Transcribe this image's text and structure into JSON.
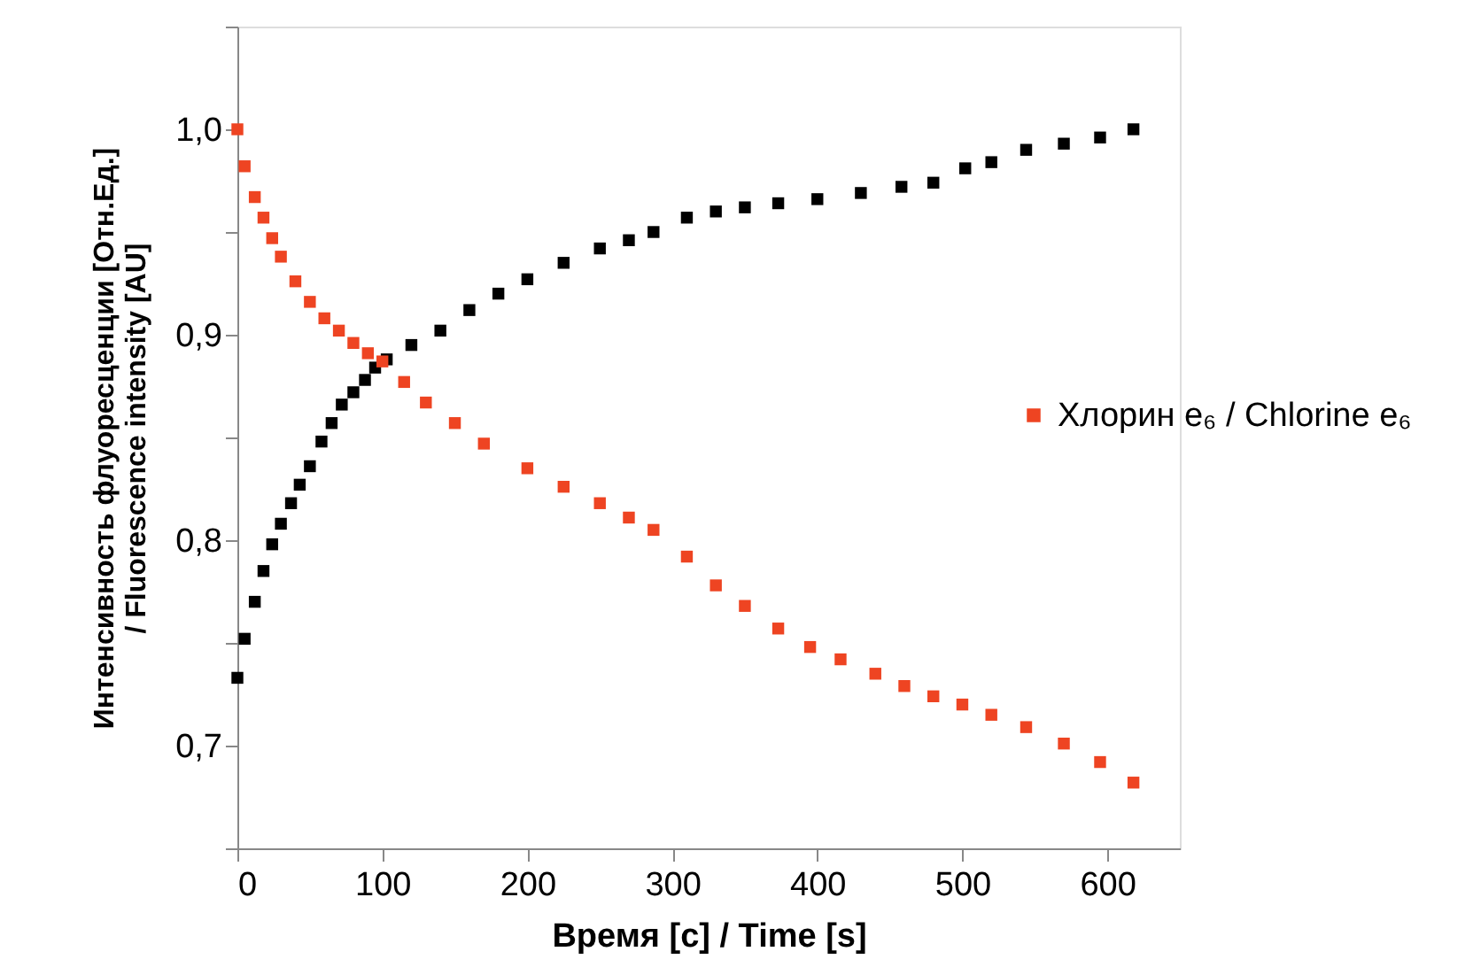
{
  "chart_data": {
    "type": "scatter",
    "xlabel": "Время [с] / Time [s]",
    "ylabel": "Интенсивность флуоресценции [Отн.Ед.] / Fluorescence intensity [AU]",
    "xlim": [
      0,
      650
    ],
    "xticks": [
      0,
      100,
      200,
      300,
      400,
      500,
      600
    ],
    "ylim": [
      0.65,
      1.05
    ],
    "yticks": [
      {
        "value": 0.65,
        "label": null
      },
      {
        "value": 0.7,
        "label": "0,7"
      },
      {
        "value": 0.75,
        "label": null
      },
      {
        "value": 0.8,
        "label": "0,8"
      },
      {
        "value": 0.85,
        "label": null
      },
      {
        "value": 0.9,
        "label": "0,9"
      },
      {
        "value": 0.95,
        "label": null
      },
      {
        "value": 1.0,
        "label": "1,0"
      },
      {
        "value": 1.05,
        "label": null
      }
    ],
    "marker": "square",
    "grid": false,
    "legend": "right",
    "series": [
      {
        "color": "#000000",
        "x": [
          0,
          5,
          12,
          18,
          24,
          30,
          37,
          43,
          50,
          58,
          65,
          72,
          80,
          88,
          95,
          103,
          120,
          140,
          160,
          180,
          200,
          225,
          250,
          270,
          287,
          310,
          330,
          350,
          373,
          400,
          430,
          458,
          480,
          502,
          520,
          544,
          570,
          595,
          618
        ],
        "values": [
          0.733,
          0.752,
          0.77,
          0.785,
          0.798,
          0.808,
          0.818,
          0.827,
          0.836,
          0.848,
          0.857,
          0.866,
          0.872,
          0.878,
          0.884,
          0.888,
          0.895,
          0.902,
          0.912,
          0.92,
          0.927,
          0.935,
          0.942,
          0.946,
          0.95,
          0.957,
          0.96,
          0.962,
          0.964,
          0.966,
          0.969,
          0.972,
          0.974,
          0.981,
          0.984,
          0.99,
          0.993,
          0.996,
          1.0
        ]
      },
      {
        "name": "Хлорин e₆ / Chlorine e₆",
        "color": "#ee4422",
        "x": [
          0,
          5,
          12,
          18,
          24,
          30,
          40,
          50,
          60,
          70,
          80,
          90,
          100,
          115,
          130,
          150,
          170,
          200,
          225,
          250,
          270,
          287,
          310,
          330,
          350,
          373,
          395,
          416,
          440,
          460,
          480,
          500,
          520,
          544,
          570,
          595,
          618
        ],
        "values": [
          1.0,
          0.982,
          0.967,
          0.957,
          0.947,
          0.938,
          0.926,
          0.916,
          0.908,
          0.902,
          0.896,
          0.891,
          0.887,
          0.877,
          0.867,
          0.857,
          0.847,
          0.835,
          0.826,
          0.818,
          0.811,
          0.805,
          0.792,
          0.778,
          0.768,
          0.757,
          0.748,
          0.742,
          0.735,
          0.729,
          0.724,
          0.72,
          0.715,
          0.709,
          0.701,
          0.692,
          0.682
        ]
      }
    ]
  }
}
